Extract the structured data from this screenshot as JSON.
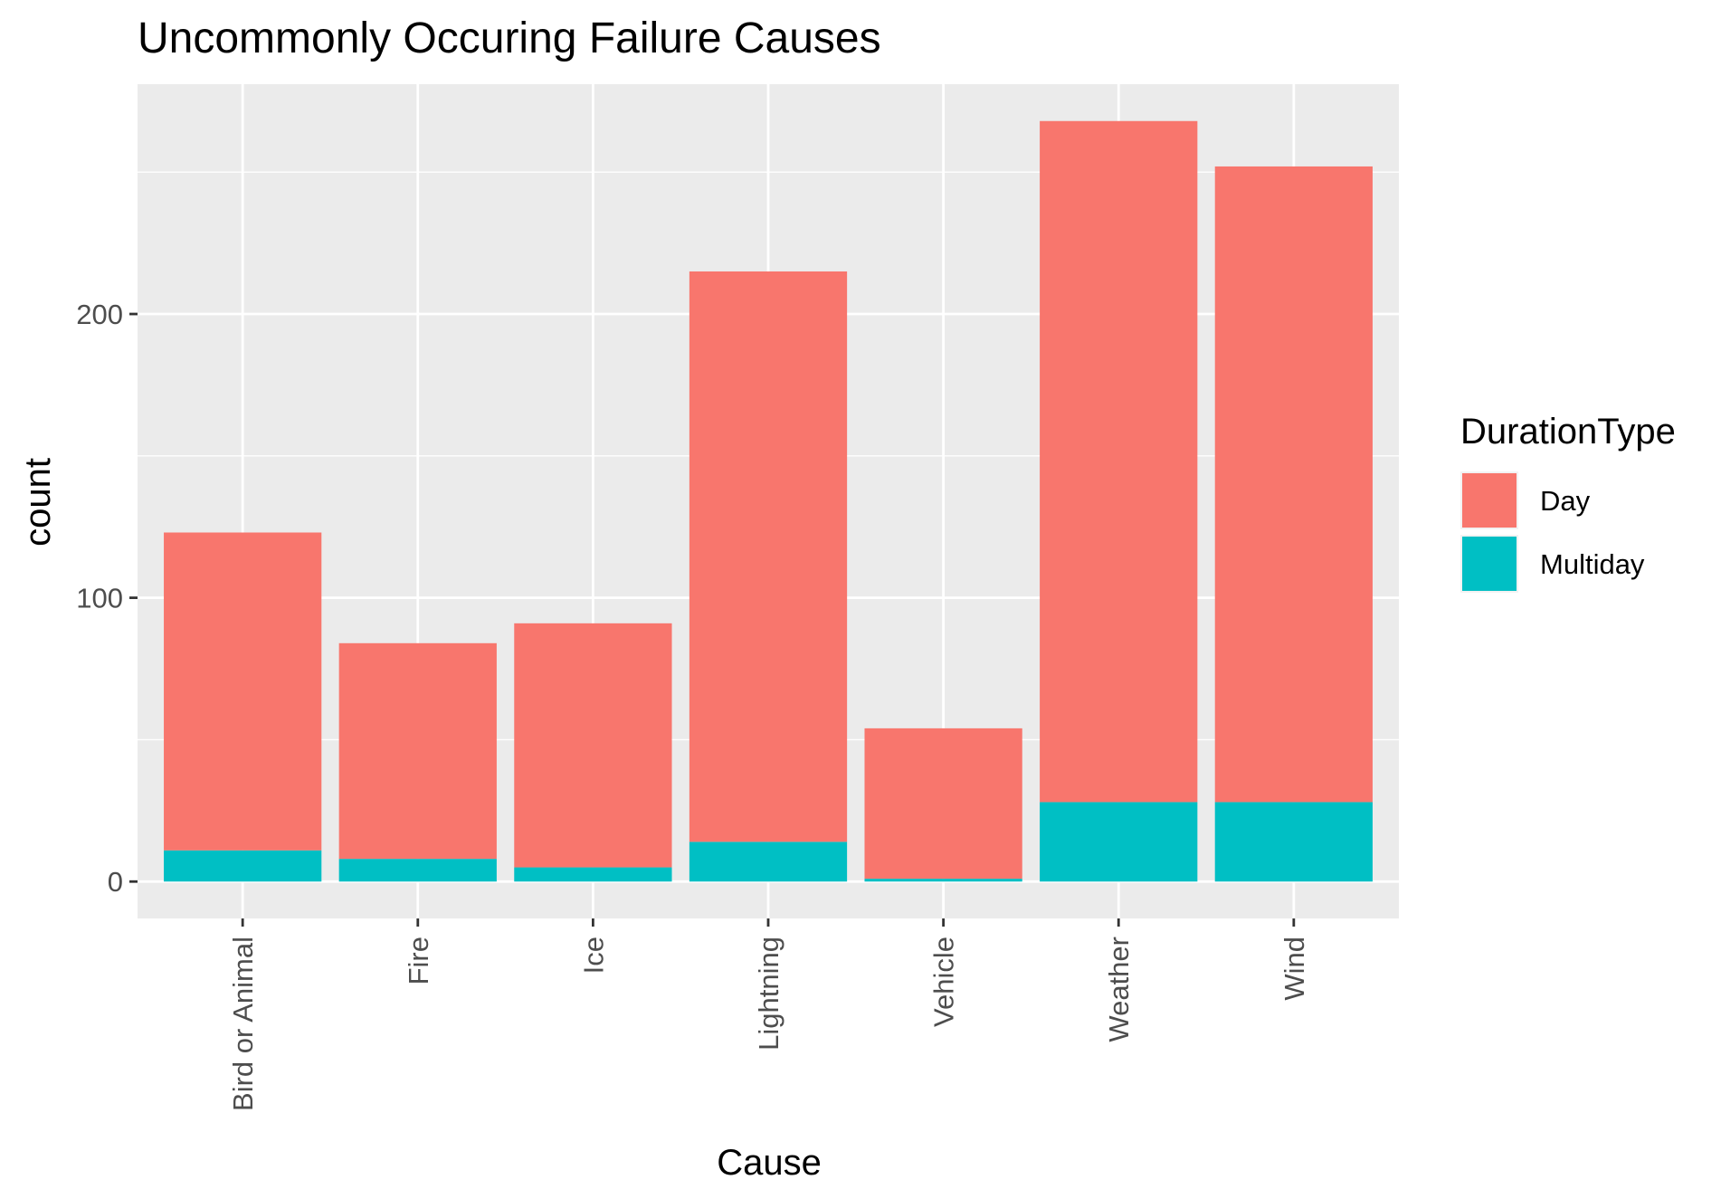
{
  "chart_data": {
    "type": "bar",
    "stacked": true,
    "title": "Uncommonly Occuring Failure Causes",
    "xlabel": "Cause",
    "ylabel": "count",
    "categories": [
      "Bird or Animal",
      "Fire",
      "Ice",
      "Lightning",
      "Vehicle",
      "Weather",
      "Wind"
    ],
    "series": [
      {
        "name": "Multiday",
        "color": "#00BFC4",
        "values": [
          11,
          8,
          5,
          14,
          1,
          28,
          28
        ]
      },
      {
        "name": "Day",
        "color": "#F8766D",
        "values": [
          112,
          76,
          86,
          201,
          53,
          240,
          224
        ]
      }
    ],
    "legend": {
      "title": "DurationType",
      "position": "right",
      "entries": [
        {
          "label": "Day",
          "color": "#F8766D"
        },
        {
          "label": "Multiday",
          "color": "#00BFC4"
        }
      ]
    },
    "yticks": [
      0,
      100,
      200
    ],
    "ylim": [
      -13,
      281
    ],
    "grid": true,
    "panel_background": "#EBEBEB",
    "grid_color": "#FFFFFF"
  }
}
